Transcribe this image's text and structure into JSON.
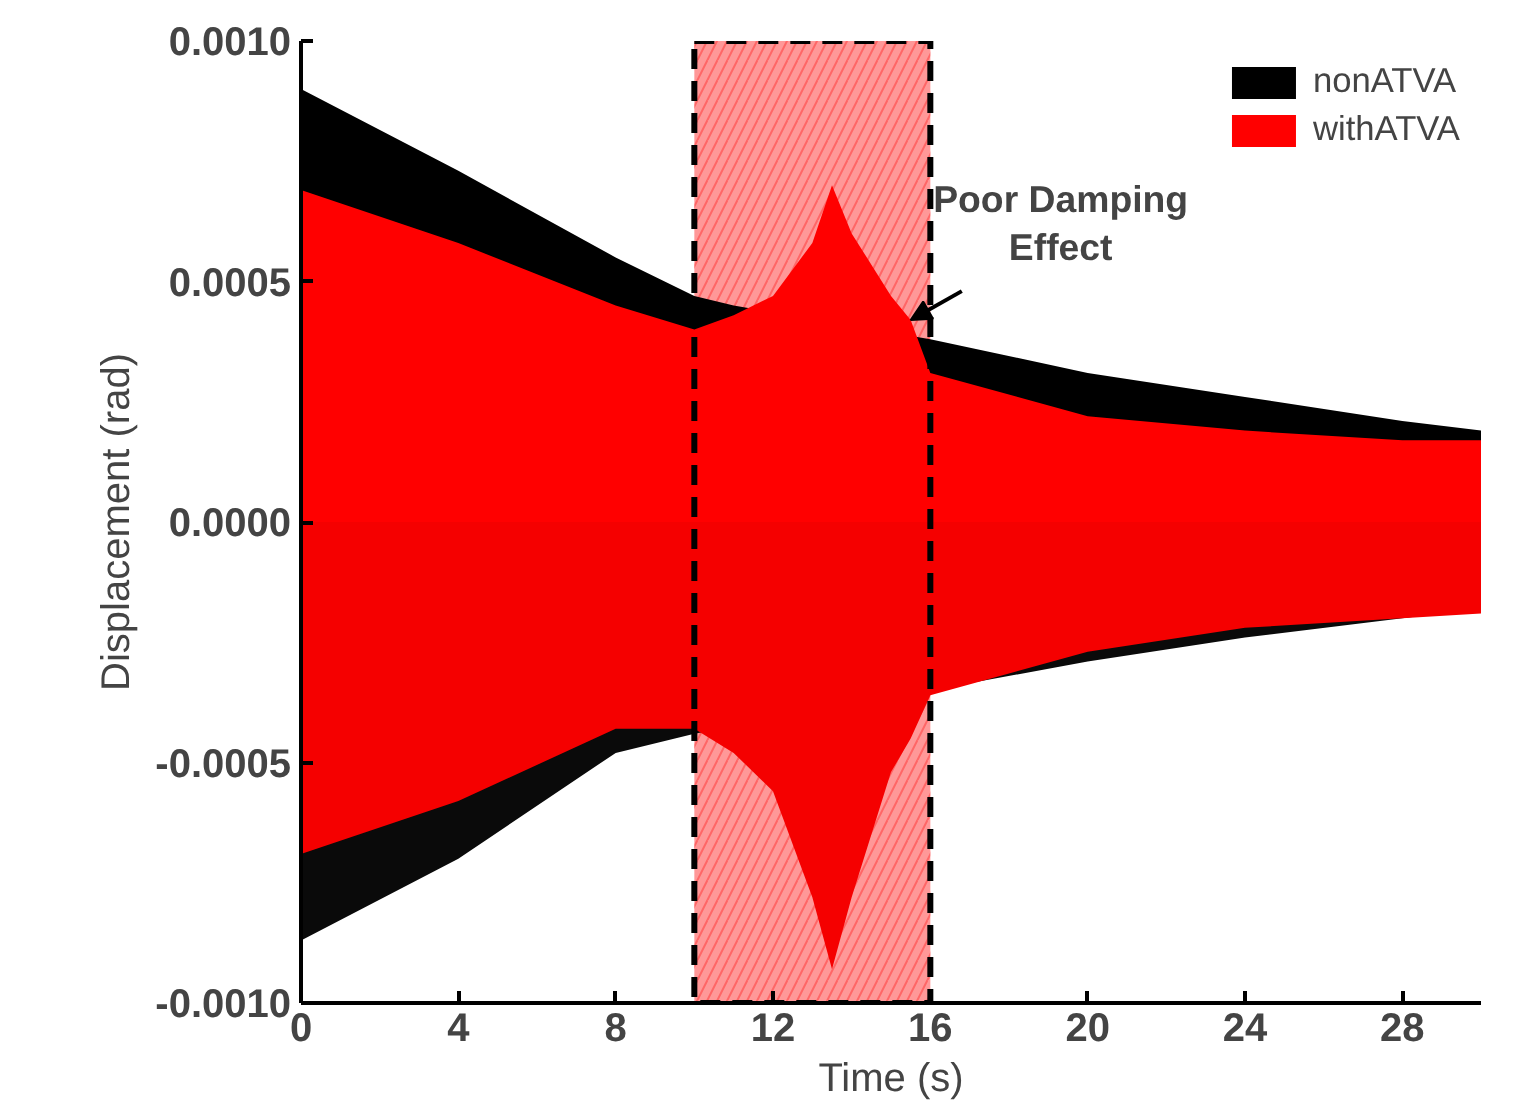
{
  "chart_data": {
    "type": "area",
    "xlabel": "Time (s)",
    "ylabel": "Displacement (rad)",
    "x": [
      0,
      4,
      8,
      10,
      11,
      12,
      13,
      13.5,
      14,
      15,
      15.5,
      16,
      20,
      24,
      28,
      30
    ],
    "series": [
      {
        "name": "nonATVA",
        "color": "#000000",
        "values": [
          0.0009,
          0.00073,
          0.00055,
          0.00047,
          0.00045,
          null,
          null,
          null,
          null,
          null,
          null,
          0.00038,
          0.00031,
          0.00026,
          0.00021,
          0.00019
        ]
      },
      {
        "color": "#0a0a0a",
        "values": [
          -0.00087,
          -0.0007,
          -0.00048,
          -0.00044,
          null,
          null,
          null,
          null,
          null,
          null,
          null,
          null,
          -0.00029,
          -0.00024,
          -0.0002,
          -0.00018
        ]
      },
      {
        "name": "withATVA",
        "color": "#ff0000",
        "values": [
          0.00069,
          0.00058,
          0.00045,
          0.0004,
          0.00043,
          0.00047,
          0.00058,
          0.0007,
          0.0006,
          0.00047,
          0.00042,
          0.00031,
          0.00022,
          0.00019,
          0.00017,
          0.00017
        ]
      },
      {
        "color": "#f50000",
        "values": [
          -0.00069,
          -0.00058,
          -0.00043,
          -0.00043,
          -0.00048,
          -0.00056,
          -0.00078,
          -0.00093,
          -0.00078,
          -0.00052,
          -0.00045,
          -0.00036,
          -0.00027,
          -0.00022,
          -0.0002,
          -0.00019
        ]
      }
    ],
    "xlim": [
      0,
      30
    ],
    "xticks": [
      0,
      4,
      8,
      12,
      16,
      20,
      24,
      28
    ],
    "ylim": [
      -0.001,
      0.001
    ],
    "yticks": [
      {
        "value": -0.001,
        "label": "-0.0010"
      },
      {
        "value": -0.0005,
        "label": "-0.0005"
      },
      {
        "value": 0,
        "label": "0.0000"
      },
      {
        "value": 0.0005,
        "label": "0.0005"
      },
      {
        "value": 0.001,
        "label": "0.0010"
      }
    ],
    "bands": [
      {
        "axis": "x",
        "from": 10,
        "to": 16,
        "color": "#ff4444"
      }
    ],
    "annotations": [
      {
        "text": "Poor Damping\nEffect",
        "x": 15.5,
        "y": 0.00042
      }
    ],
    "legend": "top right",
    "grid": false
  }
}
